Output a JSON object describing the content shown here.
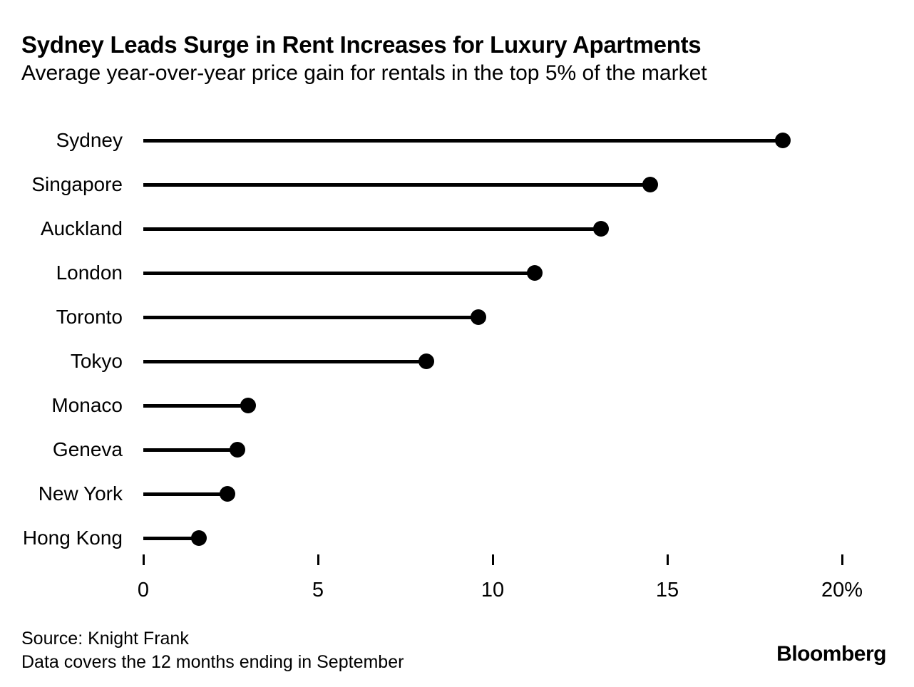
{
  "header": {
    "title": "Sydney Leads Surge in Rent Increases for Luxury Apartments",
    "subtitle": "Average year-over-year price gain for rentals in the top 5% of the market"
  },
  "chart_data": {
    "type": "bar",
    "variant": "lollipop",
    "orientation": "horizontal",
    "title": "Sydney Leads Surge in Rent Increases for Luxury Apartments",
    "subtitle": "Average year-over-year price gain for rentals in the top 5% of the market",
    "categories": [
      "Sydney",
      "Singapore",
      "Auckland",
      "London",
      "Toronto",
      "Tokyo",
      "Monaco",
      "Geneva",
      "New York",
      "Hong Kong"
    ],
    "values": [
      18.3,
      14.5,
      13.1,
      11.2,
      9.6,
      8.1,
      3.0,
      2.7,
      2.4,
      1.6
    ],
    "unit": "%",
    "xlabel": "",
    "ylabel": "",
    "xlim": [
      0,
      20
    ],
    "xticks": [
      0,
      5,
      10,
      15,
      20
    ],
    "xtick_labels": [
      "0",
      "5",
      "10",
      "15",
      "20%"
    ],
    "grid": false,
    "legend": false,
    "marker_color": "#000000",
    "line_color": "#000000",
    "background": "#ffffff"
  },
  "footer": {
    "source_line1": "Source: Knight Frank",
    "source_line2": "Data covers the 12 months ending in September",
    "brand": "Bloomberg"
  }
}
